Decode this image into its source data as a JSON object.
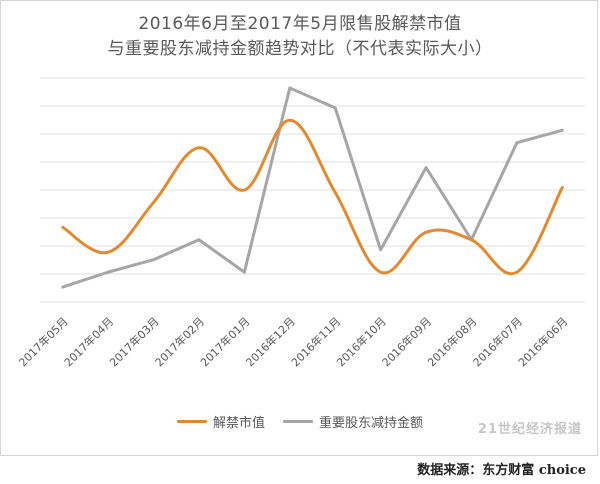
{
  "chart_data": {
    "type": "line",
    "title_line1": "2016年6月至2017年5月限售股解禁市值",
    "title_line2": "与重要股东减持金额趋势对比（不代表实际大小）",
    "categories": [
      "2017年05月",
      "2017年04月",
      "2017年03月",
      "2017年02月",
      "2017年01月",
      "2016年12月",
      "2016年11月",
      "2016年10月",
      "2016年09月",
      "2016年08月",
      "2016年07月",
      "2016年06月"
    ],
    "series": [
      {
        "name": "解禁市值",
        "color": "#E38A2E",
        "values": [
          3.0,
          2.0,
          4.0,
          6.2,
          4.5,
          7.3,
          4.4,
          1.2,
          2.8,
          2.5,
          1.2,
          4.6
        ]
      },
      {
        "name": "重要股东减持金额",
        "color": "#A6A6A6",
        "values": [
          0.6,
          1.2,
          1.7,
          2.5,
          1.2,
          8.6,
          7.8,
          2.1,
          5.4,
          2.5,
          6.4,
          6.9
        ]
      }
    ],
    "ylim": [
      0,
      9
    ],
    "y_gridlines": 8,
    "grid": true,
    "legend_position": "bottom"
  },
  "watermark": "21世纪经济报道",
  "source": "数据来源：东方财富 choice"
}
